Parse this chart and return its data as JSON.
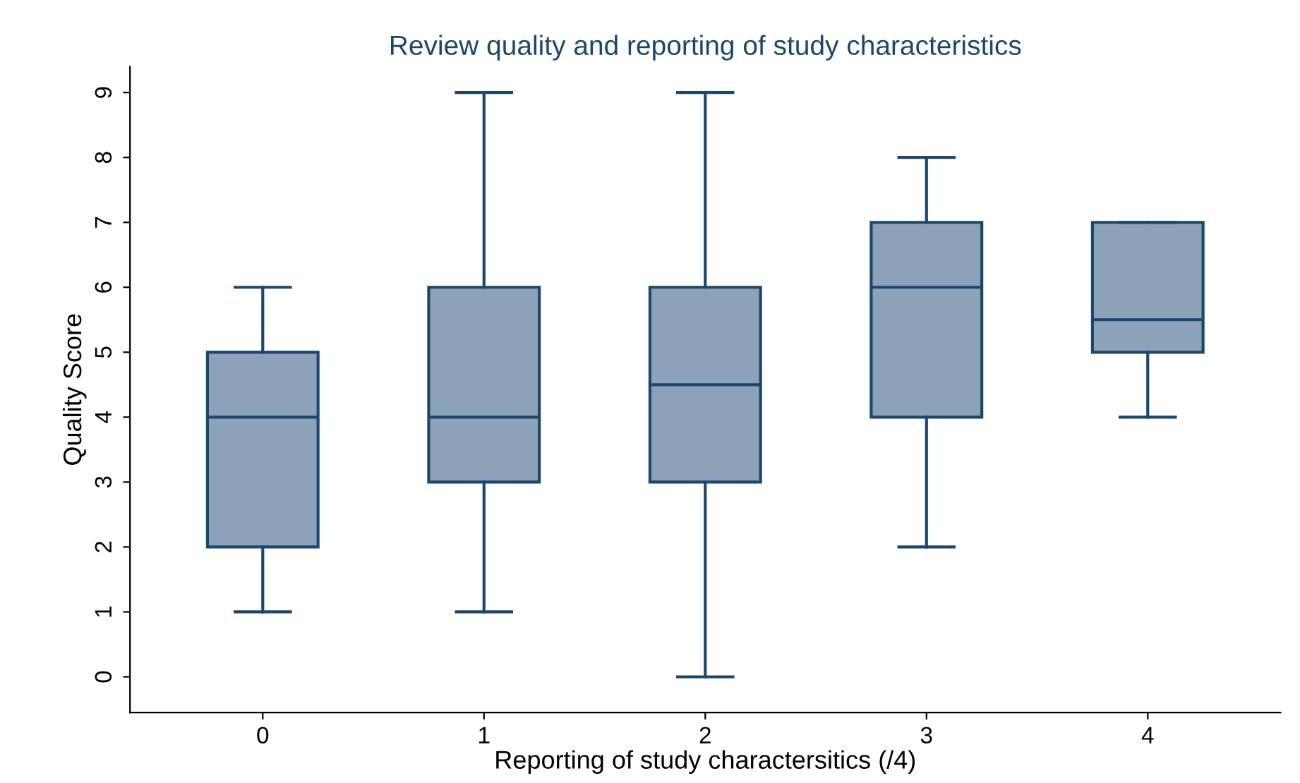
{
  "chart_data": {
    "type": "box",
    "title": "Review quality and reporting of study characteristics",
    "xlabel": "Reporting of study charactersitics (/4)",
    "ylabel": "Quality Score",
    "categories": [
      "0",
      "1",
      "2",
      "3",
      "4"
    ],
    "color": "#8ca2b8",
    "boxes": [
      {
        "low": 1,
        "q1": 2,
        "median": 4,
        "q3": 5,
        "high": 6
      },
      {
        "low": 1,
        "q1": 3,
        "median": 4,
        "q3": 6,
        "high": 9
      },
      {
        "low": 0,
        "q1": 3,
        "median": 4.5,
        "q3": 6,
        "high": 9
      },
      {
        "low": 2,
        "q1": 4,
        "median": 6,
        "q3": 7,
        "high": 8
      },
      {
        "low": 4,
        "q1": 5,
        "median": 5.5,
        "q3": 7,
        "high": 7
      }
    ],
    "ylim": [
      -0.55,
      9.4
    ],
    "yticks": [
      0,
      1,
      2,
      3,
      4,
      5,
      6,
      7,
      8,
      9
    ],
    "grid": false,
    "legend": false
  }
}
